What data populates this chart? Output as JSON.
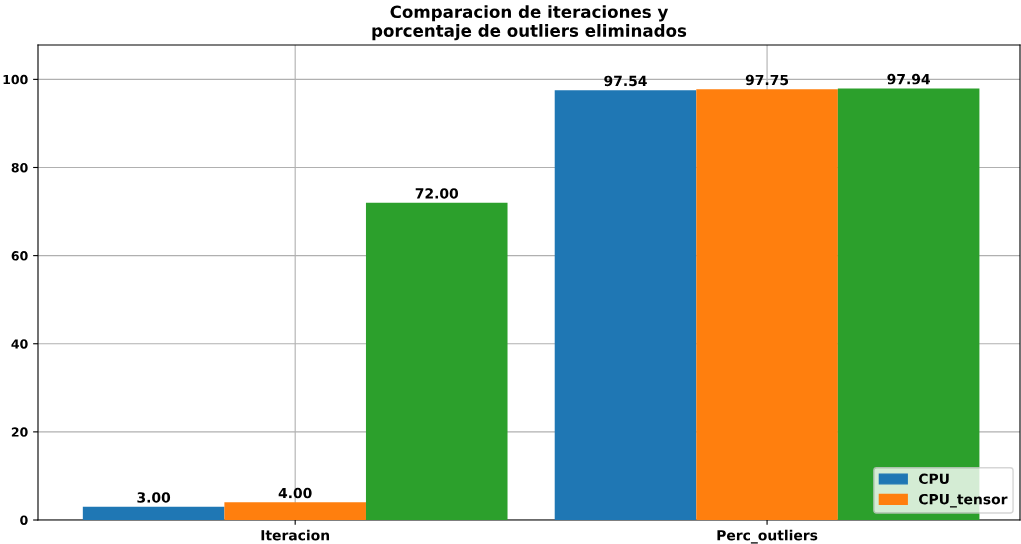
{
  "chart_data": {
    "type": "bar",
    "title": "Comparacion de iteraciones y\nporcentaje de outliers eliminados",
    "categories": [
      "Iteracion",
      "Perc_outliers"
    ],
    "series": [
      {
        "name": "CPU",
        "color": "#1f77b4",
        "values": [
          3.0,
          97.54
        ],
        "value_labels": [
          "3.00",
          "97.54"
        ]
      },
      {
        "name": "CPU_tensor",
        "color": "#ff7f0e",
        "values": [
          4.0,
          97.75
        ],
        "value_labels": [
          "4.00",
          "97.75"
        ]
      },
      {
        "color": "#2ca02c",
        "values": [
          72.0,
          97.94
        ],
        "value_labels": [
          "72.00",
          "97.94"
        ]
      }
    ],
    "ylim": [
      0,
      107.8
    ],
    "yticks": [
      0,
      20,
      40,
      60,
      80,
      100
    ],
    "grid": true,
    "legend": "bottom right"
  }
}
